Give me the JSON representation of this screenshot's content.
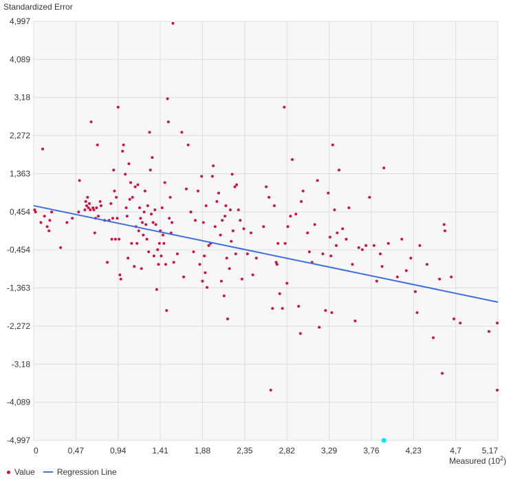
{
  "chart_data": {
    "type": "scatter",
    "title": "",
    "ylabel": "Standardized Error",
    "xlabel": "Measured (10",
    "xlabel_exponent": "2",
    "xlabel_suffix": ")",
    "xlim": [
      0,
      5.17
    ],
    "ylim": [
      -4.997,
      4.997
    ],
    "x_ticks": [
      "0",
      "0,47",
      "0,94",
      "1,41",
      "1,88",
      "2,35",
      "2,82",
      "3,29",
      "3,76",
      "4,23",
      "4,7",
      "5,17"
    ],
    "x_tick_values": [
      0,
      0.47,
      0.94,
      1.41,
      1.88,
      2.35,
      2.82,
      3.29,
      3.76,
      4.23,
      4.7,
      5.17
    ],
    "y_ticks": [
      "4,997",
      "4,089",
      "3,18",
      "2,272",
      "1,363",
      "0,454",
      "-0,454",
      "-1,363",
      "-2,272",
      "-3,18",
      "-4,089",
      "-4,997"
    ],
    "y_tick_values": [
      4.997,
      4.089,
      3.18,
      2.272,
      1.363,
      0.454,
      -0.454,
      -1.363,
      -2.272,
      -3.18,
      -4.089,
      -4.997
    ],
    "grid": true,
    "legend_position": "bottom-left",
    "colors": {
      "points": "#d01040",
      "regression": "#3c6ee0",
      "selected": "#00e5ff",
      "plot_bg": "#f7f7f7",
      "grid": "#dcdcdc"
    },
    "series": [
      {
        "name": "Value",
        "points": [
          [
            0.01,
            0.5
          ],
          [
            0.02,
            0.45
          ],
          [
            0.08,
            0.2
          ],
          [
            0.1,
            1.95
          ],
          [
            0.12,
            0.35
          ],
          [
            0.15,
            0.1
          ],
          [
            0.17,
            0.0
          ],
          [
            0.18,
            0.25
          ],
          [
            0.2,
            0.45
          ],
          [
            0.3,
            -0.4
          ],
          [
            0.37,
            0.2
          ],
          [
            0.43,
            0.3
          ],
          [
            0.5,
            0.45
          ],
          [
            0.51,
            1.2
          ],
          [
            0.57,
            0.5
          ],
          [
            0.58,
            0.7
          ],
          [
            0.59,
            0.6
          ],
          [
            0.6,
            0.8
          ],
          [
            0.61,
            0.55
          ],
          [
            0.62,
            0.65
          ],
          [
            0.63,
            0.5
          ],
          [
            0.64,
            2.6
          ],
          [
            0.66,
            0.55
          ],
          [
            0.67,
            0.5
          ],
          [
            0.68,
            -0.05
          ],
          [
            0.69,
            0.3
          ],
          [
            0.7,
            0.55
          ],
          [
            0.71,
            2.05
          ],
          [
            0.72,
            0.35
          ],
          [
            0.74,
            0.7
          ],
          [
            0.75,
            0.6
          ],
          [
            0.79,
            0.25
          ],
          [
            0.82,
            -0.75
          ],
          [
            0.84,
            0.25
          ],
          [
            0.86,
            0.65
          ],
          [
            0.87,
            -0.2
          ],
          [
            0.88,
            0.3
          ],
          [
            0.89,
            1.45
          ],
          [
            0.9,
            0.95
          ],
          [
            0.91,
            -0.2
          ],
          [
            0.92,
            0.8
          ],
          [
            0.93,
            0.3
          ],
          [
            0.94,
            2.95
          ],
          [
            0.95,
            -0.2
          ],
          [
            0.96,
            -1.05
          ],
          [
            0.97,
            -1.15
          ],
          [
            0.99,
            1.9
          ],
          [
            1.0,
            2.05
          ],
          [
            1.02,
            1.35
          ],
          [
            1.03,
            0.55
          ],
          [
            1.04,
            0.35
          ],
          [
            1.05,
            -0.65
          ],
          [
            1.06,
            1.6
          ],
          [
            1.07,
            0.75
          ],
          [
            1.08,
            1.15
          ],
          [
            1.09,
            -0.3
          ],
          [
            1.1,
            0.8
          ],
          [
            1.12,
            -0.85
          ],
          [
            1.13,
            1.05
          ],
          [
            1.14,
            0.1
          ],
          [
            1.15,
            -0.3
          ],
          [
            1.16,
            1.1
          ],
          [
            1.17,
            0.0
          ],
          [
            1.18,
            0.55
          ],
          [
            1.19,
            0.3
          ],
          [
            1.2,
            -0.9
          ],
          [
            1.21,
            0.2
          ],
          [
            1.22,
            -0.1
          ],
          [
            1.23,
            0.45
          ],
          [
            1.24,
            0.95
          ],
          [
            1.25,
            0.15
          ],
          [
            1.26,
            -0.2
          ],
          [
            1.27,
            0.6
          ],
          [
            1.28,
            -0.5
          ],
          [
            1.29,
            2.35
          ],
          [
            1.3,
            1.45
          ],
          [
            1.31,
            0.4
          ],
          [
            1.32,
            1.75
          ],
          [
            1.33,
            0.2
          ],
          [
            1.34,
            -0.6
          ],
          [
            1.35,
            0.5
          ],
          [
            1.36,
            0.15
          ],
          [
            1.37,
            -1.4
          ],
          [
            1.38,
            -0.45
          ],
          [
            1.39,
            -0.8
          ],
          [
            1.4,
            -0.3
          ],
          [
            1.41,
            0.0
          ],
          [
            1.42,
            -0.6
          ],
          [
            1.43,
            0.55
          ],
          [
            1.44,
            -0.1
          ],
          [
            1.45,
            -0.3
          ],
          [
            1.46,
            1.15
          ],
          [
            1.47,
            -0.8
          ],
          [
            1.48,
            -1.9
          ],
          [
            1.49,
            3.15
          ],
          [
            1.5,
            2.6
          ],
          [
            1.51,
            0.3
          ],
          [
            1.52,
            0.8
          ],
          [
            1.53,
            -0.05
          ],
          [
            1.54,
            0.2
          ],
          [
            1.55,
            4.95
          ],
          [
            1.56,
            -0.75
          ],
          [
            1.6,
            -0.55
          ],
          [
            1.65,
            2.35
          ],
          [
            1.67,
            -1.1
          ],
          [
            1.7,
            1.0
          ],
          [
            1.72,
            2.05
          ],
          [
            1.75,
            0.45
          ],
          [
            1.78,
            -0.5
          ],
          [
            1.8,
            0.25
          ],
          [
            1.83,
            0.95
          ],
          [
            1.85,
            -0.8
          ],
          [
            1.87,
            1.3
          ],
          [
            1.88,
            -1.2
          ],
          [
            1.89,
            0.2
          ],
          [
            1.9,
            -0.6
          ],
          [
            1.91,
            -1.0
          ],
          [
            1.92,
            0.6
          ],
          [
            1.93,
            -1.35
          ],
          [
            1.95,
            -0.35
          ],
          [
            1.97,
            -0.3
          ],
          [
            1.99,
            1.3
          ],
          [
            2.0,
            1.55
          ],
          [
            2.02,
            0.1
          ],
          [
            2.04,
            0.7
          ],
          [
            2.06,
            0.9
          ],
          [
            2.08,
            -0.1
          ],
          [
            2.09,
            -1.2
          ],
          [
            2.1,
            0.25
          ],
          [
            2.12,
            -1.55
          ],
          [
            2.13,
            0.35
          ],
          [
            2.14,
            0.6
          ],
          [
            2.15,
            -0.65
          ],
          [
            2.16,
            -2.1
          ],
          [
            2.18,
            -0.9
          ],
          [
            2.19,
            0.5
          ],
          [
            2.2,
            -0.25
          ],
          [
            2.21,
            1.35
          ],
          [
            2.22,
            0.0
          ],
          [
            2.24,
            1.05
          ],
          [
            2.25,
            -0.55
          ],
          [
            2.26,
            1.1
          ],
          [
            2.28,
            0.5
          ],
          [
            2.3,
            0.25
          ],
          [
            2.32,
            -1.15
          ],
          [
            2.34,
            0.05
          ],
          [
            2.38,
            -0.55
          ],
          [
            2.42,
            -0.05
          ],
          [
            2.44,
            -1.05
          ],
          [
            2.48,
            -0.65
          ],
          [
            2.56,
            0.1
          ],
          [
            2.59,
            1.05
          ],
          [
            2.62,
            0.8
          ],
          [
            2.64,
            -3.8
          ],
          [
            2.66,
            -1.85
          ],
          [
            2.68,
            0.6
          ],
          [
            2.7,
            -0.75
          ],
          [
            2.71,
            -0.8
          ],
          [
            2.72,
            -0.3
          ],
          [
            2.74,
            -1.5
          ],
          [
            2.77,
            -1.85
          ],
          [
            2.79,
            2.95
          ],
          [
            2.8,
            -0.3
          ],
          [
            2.82,
            -1.25
          ],
          [
            2.83,
            0.1
          ],
          [
            2.86,
            0.35
          ],
          [
            2.88,
            1.7
          ],
          [
            2.92,
            0.4
          ],
          [
            2.95,
            -1.8
          ],
          [
            2.97,
            -2.45
          ],
          [
            2.98,
            0.7
          ],
          [
            3.0,
            0.95
          ],
          [
            3.05,
            -0.05
          ],
          [
            3.07,
            -0.5
          ],
          [
            3.1,
            -0.75
          ],
          [
            3.13,
            0.15
          ],
          [
            3.16,
            1.2
          ],
          [
            3.18,
            -2.3
          ],
          [
            3.22,
            -0.55
          ],
          [
            3.25,
            -1.9
          ],
          [
            3.28,
            0.9
          ],
          [
            3.3,
            -0.15
          ],
          [
            3.31,
            -0.6
          ],
          [
            3.32,
            -1.95
          ],
          [
            3.33,
            2.05
          ],
          [
            3.35,
            0.5
          ],
          [
            3.37,
            -0.35
          ],
          [
            3.38,
            -0.05
          ],
          [
            3.4,
            1.45
          ],
          [
            3.44,
            0.05
          ],
          [
            3.48,
            -0.2
          ],
          [
            3.51,
            0.55
          ],
          [
            3.55,
            -0.8
          ],
          [
            3.58,
            -2.15
          ],
          [
            3.62,
            -0.4
          ],
          [
            3.66,
            -0.45
          ],
          [
            3.7,
            -0.35
          ],
          [
            3.74,
            0.8
          ],
          [
            3.79,
            -0.35
          ],
          [
            3.82,
            -1.2
          ],
          [
            3.86,
            -0.55
          ],
          [
            3.88,
            -0.85
          ],
          [
            3.9,
            1.5
          ],
          [
            3.95,
            -0.3
          ],
          [
            4.05,
            -1.1
          ],
          [
            4.1,
            -0.2
          ],
          [
            4.15,
            -0.95
          ],
          [
            4.2,
            -0.65
          ],
          [
            4.25,
            -1.45
          ],
          [
            4.27,
            -1.95
          ],
          [
            4.3,
            -0.35
          ],
          [
            4.38,
            -0.8
          ],
          [
            4.45,
            -2.55
          ],
          [
            4.52,
            -1.15
          ],
          [
            4.55,
            -3.4
          ],
          [
            4.57,
            0.15
          ],
          [
            4.58,
            0.0
          ],
          [
            4.65,
            -1.1
          ],
          [
            4.68,
            -2.1
          ],
          [
            4.75,
            -2.2
          ],
          [
            5.07,
            -2.4
          ],
          [
            5.17,
            -3.8
          ],
          [
            5.2,
            -2.2
          ]
        ]
      },
      {
        "name": "Regression Line",
        "points": [
          [
            0,
            0.6
          ],
          [
            5.17,
            -1.7
          ]
        ]
      }
    ],
    "selected_point": [
      3.9,
      -4.997
    ]
  },
  "legend": {
    "value_label": "Value",
    "regression_label": "Regression Line"
  }
}
